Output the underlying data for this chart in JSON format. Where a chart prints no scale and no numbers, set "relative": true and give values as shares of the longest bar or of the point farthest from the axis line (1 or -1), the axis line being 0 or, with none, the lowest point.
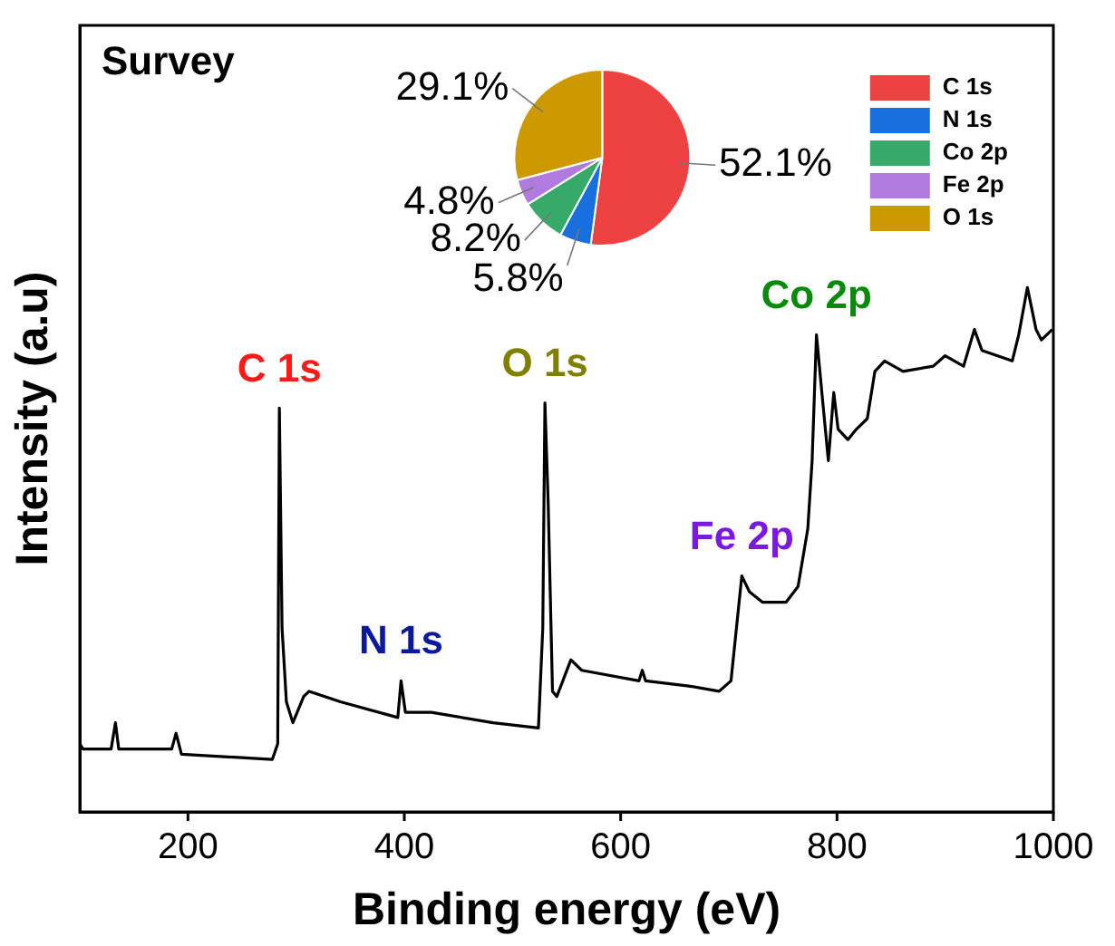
{
  "chart_data": [
    {
      "type": "line",
      "xlabel": "Binding energy (eV)",
      "ylabel": "Intensity (a.u)",
      "relative": true,
      "xlim": [
        100,
        1000
      ],
      "xticks": [
        200,
        400,
        600,
        800,
        1000
      ],
      "grid": false,
      "legend": false,
      "x": [
        100,
        103,
        129,
        133,
        136,
        185,
        189,
        194,
        278,
        283,
        284.5,
        287,
        291,
        297,
        307,
        312,
        341,
        394,
        397,
        401,
        425,
        482,
        524,
        528,
        530,
        533,
        537,
        541,
        554,
        564,
        617,
        620,
        623,
        663,
        691,
        702,
        707,
        712,
        719,
        731,
        753,
        764,
        773,
        777,
        781,
        786,
        792,
        797,
        801,
        810,
        818,
        828,
        835,
        844,
        861,
        889,
        900,
        917,
        927,
        934,
        962,
        968,
        976,
        984,
        989,
        999
      ],
      "series": [
        {
          "color": "#000000",
          "values": [
            0.13,
            0.12,
            0.12,
            0.17,
            0.12,
            0.12,
            0.15,
            0.11,
            0.1,
            0.13,
            0.77,
            0.35,
            0.21,
            0.17,
            0.22,
            0.23,
            0.21,
            0.18,
            0.25,
            0.19,
            0.19,
            0.17,
            0.16,
            0.35,
            0.78,
            0.59,
            0.23,
            0.22,
            0.29,
            0.27,
            0.25,
            0.27,
            0.25,
            0.24,
            0.23,
            0.25,
            0.35,
            0.45,
            0.42,
            0.4,
            0.4,
            0.43,
            0.54,
            0.67,
            0.91,
            0.8,
            0.67,
            0.8,
            0.73,
            0.71,
            0.73,
            0.75,
            0.84,
            0.86,
            0.84,
            0.85,
            0.87,
            0.85,
            0.92,
            0.88,
            0.86,
            0.91,
            1,
            0.92,
            0.9,
            0.92
          ]
        }
      ],
      "annotations": [
        {
          "text": "C 1s",
          "x": 284.5,
          "y": 0.77
        },
        {
          "text": "N 1s",
          "x": 397,
          "y": 0.25
        },
        {
          "text": "O 1s",
          "x": 530,
          "y": 0.78
        },
        {
          "text": "Fe 2p",
          "x": 712,
          "y": 0.45
        },
        {
          "text": "Co 2p",
          "x": 781,
          "y": 0.91
        }
      ]
    },
    {
      "type": "pie",
      "title": "Survey",
      "legend": "right",
      "categories": [
        "C 1s",
        "N 1s",
        "Co 2p",
        "Fe 2p",
        "O 1s"
      ],
      "values": [
        52.1,
        5.8,
        8.2,
        4.8,
        29.1
      ],
      "colors": [
        "#ee4242",
        "#1a6fdf",
        "#37aa6a",
        "#b07ade",
        "#cc9900"
      ],
      "value_labels": [
        "52.1%",
        "5.8%",
        "8.2%",
        "4.8%",
        "29.1%"
      ]
    }
  ]
}
